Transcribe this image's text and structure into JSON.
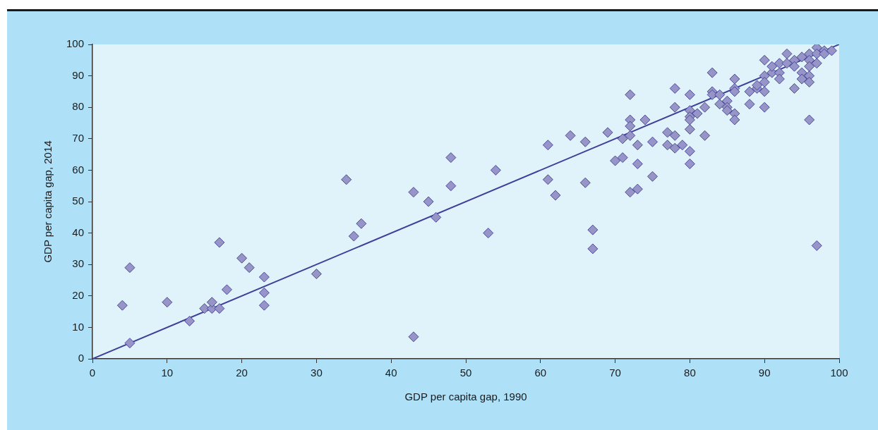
{
  "chart_data": {
    "type": "scatter",
    "xlabel": "GDP per capita gap, 1990",
    "ylabel": "GDP per capita gap, 2014",
    "xlim": [
      0,
      100
    ],
    "xticks": [
      0,
      10,
      20,
      30,
      40,
      50,
      60,
      70,
      80,
      90,
      100
    ],
    "ylim": [
      0,
      100
    ],
    "yticks": [
      0,
      10,
      20,
      30,
      40,
      50,
      60,
      70,
      80,
      90,
      100
    ],
    "grid": false,
    "legend": false,
    "marker": "diamond",
    "series": [
      {
        "color": "#9794c8",
        "x": [
          4,
          5,
          5,
          10,
          13,
          15,
          16,
          16,
          17,
          17,
          18,
          20,
          21,
          23,
          23,
          23,
          30,
          34,
          35,
          36,
          43,
          43,
          45,
          46,
          48,
          48,
          53,
          54,
          61,
          61,
          62,
          64,
          66,
          66,
          67,
          67,
          69,
          70,
          71,
          71,
          72,
          72,
          72,
          72,
          72,
          73,
          73,
          73,
          74,
          75,
          75,
          77,
          77,
          78,
          78,
          78,
          78,
          79,
          80,
          80,
          80,
          80,
          80,
          80,
          80,
          81,
          82,
          82,
          83,
          83,
          83,
          84,
          84,
          85,
          85,
          85,
          86,
          86,
          86,
          86,
          86,
          88,
          88,
          89,
          89,
          90,
          90,
          90,
          90,
          90,
          91,
          91,
          92,
          92,
          92,
          93,
          93,
          94,
          94,
          94,
          95,
          95,
          95,
          96,
          96,
          96,
          96,
          96,
          96,
          97,
          97,
          97,
          97,
          98,
          98,
          99
        ],
        "values": [
          17,
          29,
          5,
          18,
          12,
          16,
          16,
          18,
          16,
          37,
          22,
          32,
          29,
          26,
          21,
          17,
          27,
          57,
          39,
          43,
          53,
          7,
          50,
          45,
          64,
          55,
          40,
          60,
          68,
          57,
          52,
          71,
          69,
          56,
          41,
          35,
          72,
          63,
          70,
          64,
          84,
          76,
          74,
          71,
          53,
          68,
          62,
          54,
          76,
          69,
          58,
          72,
          68,
          86,
          80,
          71,
          67,
          68,
          84,
          79,
          77,
          76,
          73,
          66,
          62,
          78,
          80,
          71,
          91,
          85,
          84,
          84,
          81,
          82,
          80,
          79,
          89,
          86,
          85,
          78,
          76,
          85,
          81,
          86,
          87,
          95,
          90,
          88,
          85,
          80,
          91,
          93,
          94,
          91,
          89,
          97,
          94,
          95,
          93,
          86,
          96,
          91,
          89,
          97,
          95,
          93,
          90,
          88,
          76,
          99,
          97,
          94,
          36,
          98,
          97,
          98
        ]
      },
      {
        "type": "line",
        "color": "#3f3f98",
        "x": [
          0,
          100
        ],
        "values": [
          0,
          100
        ],
        "marker": "none"
      }
    ]
  }
}
